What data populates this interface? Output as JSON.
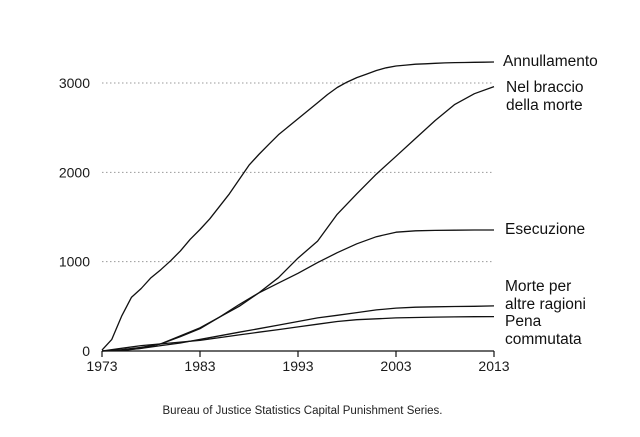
{
  "chart_data": {
    "type": "line",
    "title": "",
    "xlabel": "",
    "ylabel": "",
    "xlim": [
      1973,
      2013
    ],
    "ylim": [
      0,
      3000
    ],
    "xticks": [
      1973,
      1983,
      1993,
      2003,
      2013
    ],
    "yticks": [
      0,
      1000,
      2000,
      3000
    ],
    "xtick_labels": [
      "1973",
      "1983",
      "1993",
      "2003",
      "2013"
    ],
    "ytick_labels": [
      "0",
      "1000",
      "2000",
      "3000"
    ],
    "grid": "horizontal dotted",
    "legend": "labels at line ends on the right",
    "series": [
      {
        "name": "Annullamento",
        "label_lines": [
          "Annullamento"
        ],
        "points": [
          [
            1973,
            10
          ],
          [
            1974,
            130
          ],
          [
            1975,
            390
          ],
          [
            1976,
            600
          ],
          [
            1977,
            700
          ],
          [
            1978,
            820
          ],
          [
            1979,
            910
          ],
          [
            1980,
            1010
          ],
          [
            1981,
            1120
          ],
          [
            1982,
            1250
          ],
          [
            1983,
            1360
          ],
          [
            1984,
            1480
          ],
          [
            1985,
            1620
          ],
          [
            1986,
            1760
          ],
          [
            1987,
            1920
          ],
          [
            1988,
            2080
          ],
          [
            1989,
            2200
          ],
          [
            1990,
            2310
          ],
          [
            1991,
            2420
          ],
          [
            1992,
            2510
          ],
          [
            1993,
            2600
          ],
          [
            1994,
            2690
          ],
          [
            1995,
            2780
          ],
          [
            1996,
            2870
          ],
          [
            1997,
            2950
          ],
          [
            1998,
            3010
          ],
          [
            1999,
            3060
          ],
          [
            2000,
            3100
          ],
          [
            2001,
            3140
          ],
          [
            2002,
            3170
          ],
          [
            2003,
            3190
          ],
          [
            2004,
            3200
          ],
          [
            2005,
            3210
          ],
          [
            2006,
            3215
          ],
          [
            2007,
            3220
          ],
          [
            2008,
            3225
          ],
          [
            2009,
            3228
          ],
          [
            2010,
            3230
          ],
          [
            2011,
            3232
          ],
          [
            2012,
            3233
          ],
          [
            2013,
            3235
          ]
        ]
      },
      {
        "name": "Nel braccio della morte",
        "label_lines": [
          "Nel braccio",
          "della morte"
        ],
        "points": [
          [
            1973,
            0
          ],
          [
            1975,
            5
          ],
          [
            1977,
            30
          ],
          [
            1979,
            80
          ],
          [
            1981,
            170
          ],
          [
            1983,
            260
          ],
          [
            1985,
            380
          ],
          [
            1987,
            500
          ],
          [
            1989,
            650
          ],
          [
            1991,
            820
          ],
          [
            1993,
            1040
          ],
          [
            1995,
            1230
          ],
          [
            1997,
            1530
          ],
          [
            1999,
            1760
          ],
          [
            2001,
            1980
          ],
          [
            2003,
            2180
          ],
          [
            2005,
            2380
          ],
          [
            2007,
            2580
          ],
          [
            2009,
            2760
          ],
          [
            2011,
            2880
          ],
          [
            2013,
            2960
          ]
        ]
      },
      {
        "name": "Esecuzione",
        "label_lines": [
          "Esecuzione"
        ],
        "points": [
          [
            1973,
            0
          ],
          [
            1975,
            15
          ],
          [
            1977,
            40
          ],
          [
            1979,
            80
          ],
          [
            1981,
            160
          ],
          [
            1983,
            250
          ],
          [
            1985,
            380
          ],
          [
            1987,
            520
          ],
          [
            1989,
            650
          ],
          [
            1991,
            760
          ],
          [
            1993,
            870
          ],
          [
            1995,
            990
          ],
          [
            1997,
            1100
          ],
          [
            1999,
            1200
          ],
          [
            2001,
            1280
          ],
          [
            2003,
            1330
          ],
          [
            2005,
            1345
          ],
          [
            2007,
            1350
          ],
          [
            2009,
            1352
          ],
          [
            2011,
            1354
          ],
          [
            2013,
            1355
          ]
        ]
      },
      {
        "name": "Morte per altre ragioni",
        "label_lines": [
          "Morte per",
          "altre ragioni"
        ],
        "points": [
          [
            1973,
            0
          ],
          [
            1975,
            10
          ],
          [
            1977,
            30
          ],
          [
            1979,
            60
          ],
          [
            1981,
            90
          ],
          [
            1983,
            130
          ],
          [
            1985,
            170
          ],
          [
            1987,
            210
          ],
          [
            1989,
            250
          ],
          [
            1991,
            290
          ],
          [
            1993,
            330
          ],
          [
            1995,
            370
          ],
          [
            1997,
            400
          ],
          [
            1999,
            430
          ],
          [
            2001,
            460
          ],
          [
            2003,
            480
          ],
          [
            2005,
            490
          ],
          [
            2007,
            495
          ],
          [
            2009,
            498
          ],
          [
            2011,
            500
          ],
          [
            2013,
            505
          ]
        ]
      },
      {
        "name": "Pena commutata",
        "label_lines": [
          "Pena",
          "commutata"
        ],
        "points": [
          [
            1973,
            0
          ],
          [
            1975,
            30
          ],
          [
            1977,
            60
          ],
          [
            1979,
            80
          ],
          [
            1981,
            100
          ],
          [
            1983,
            120
          ],
          [
            1985,
            150
          ],
          [
            1987,
            180
          ],
          [
            1989,
            210
          ],
          [
            1991,
            240
          ],
          [
            1993,
            270
          ],
          [
            1995,
            300
          ],
          [
            1997,
            330
          ],
          [
            1999,
            350
          ],
          [
            2001,
            360
          ],
          [
            2003,
            370
          ],
          [
            2005,
            375
          ],
          [
            2007,
            380
          ],
          [
            2009,
            382
          ],
          [
            2011,
            384
          ],
          [
            2013,
            385
          ]
        ]
      }
    ]
  },
  "source_note": "Bureau of Justice Statistics Capital Punishment Series."
}
